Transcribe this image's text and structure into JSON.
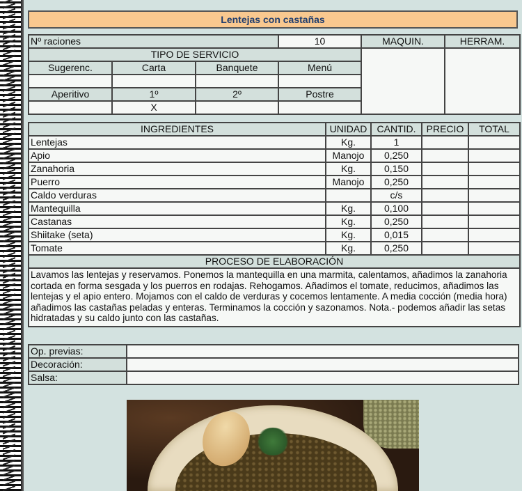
{
  "title": "Lentejas con castañas",
  "raciones": {
    "label": "Nº raciones",
    "value": "10"
  },
  "maquinaria": "MAQUIN.",
  "herramientas": "HERRAM.",
  "tipo_servicio": "TIPO DE SERVICIO",
  "servicio_row1": [
    "Sugerenc.",
    "Carta",
    "Banquete",
    "Menú"
  ],
  "servicio_row1_values": [
    "",
    "",
    "",
    ""
  ],
  "servicio_row2": [
    "Aperitivo",
    "1º",
    "2º",
    "Postre"
  ],
  "servicio_row2_values": [
    "",
    "X",
    "",
    ""
  ],
  "ingredients_headers": [
    "INGREDIENTES",
    "UNIDAD",
    "CANTID.",
    "PRECIO",
    "TOTAL"
  ],
  "ingredients": [
    {
      "name": "Lentejas",
      "unit": "Kg.",
      "qty": "1"
    },
    {
      "name": "Apio",
      "unit": "Manojo",
      "qty": "0,250"
    },
    {
      "name": "Zanahoria",
      "unit": "Kg.",
      "qty": "0,150"
    },
    {
      "name": "Puerro",
      "unit": "Manojo",
      "qty": "0,250"
    },
    {
      "name": "Caldo verduras",
      "unit": "",
      "qty": "c/s"
    },
    {
      "name": "Mantequilla",
      "unit": "Kg.",
      "qty": "0,100"
    },
    {
      "name": "Castanas",
      "unit": "Kg.",
      "qty": "0,250"
    },
    {
      "name": "Shiitake (seta)",
      "unit": "Kg.",
      "qty": "0,015"
    },
    {
      "name": "Tomate",
      "unit": "Kg.",
      "qty": "0,250"
    }
  ],
  "proceso_header": "PROCESO DE ELABORACIÓN",
  "proceso": "Lavamos las lentejas y reservamos. Ponemos la mantequilla en una marmita, calentamos, añadimos la zanahoria cortada en forma sesgada y los puerros en rodajas. Rehogamos. Añadimos el tomate, reducimos, añadimos las lentejas y el apio entero. Mojamos con el caldo de verduras y cocemos lentamente. A media cocción (media hora) añadimos las castañas peladas y enteras. Terminamos la cocción y sazonamos. Nota.- podemos añadir las setas hidratadas y su caldo junto con las castañas.",
  "extras": [
    {
      "label": "Op. previas:",
      "value": ""
    },
    {
      "label": "Decoración:",
      "value": ""
    },
    {
      "label": "Salsa:",
      "value": ""
    }
  ],
  "colors": {
    "title_bg": "#f9c88f",
    "title_text": "#1f3d6e",
    "header_bg": "#d3e0dc",
    "page_bg": "#d3e2e0"
  }
}
